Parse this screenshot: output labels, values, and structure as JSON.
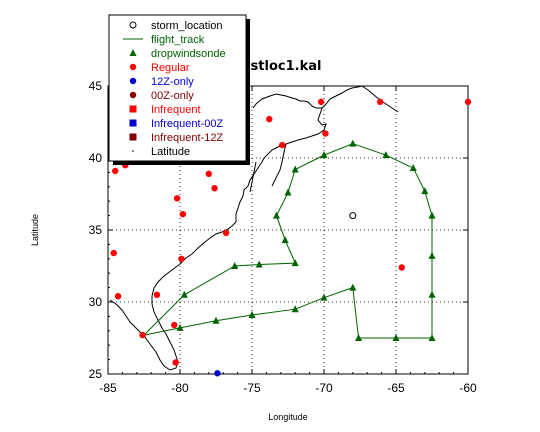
{
  "chart_data": {
    "type": "scatter",
    "title": "stloc1.kal",
    "xlabel": "Longitude",
    "ylabel": "Latitude",
    "xlim": [
      -85,
      -60
    ],
    "ylim": [
      25,
      45
    ],
    "xticks": [
      -85,
      -80,
      -75,
      -70,
      -65,
      -60
    ],
    "yticks": [
      25,
      30,
      35,
      40,
      45
    ],
    "grid": true,
    "grid_style": "dotted",
    "legend_placement": "top-left",
    "legend": [
      {
        "label": "storm_location",
        "marker": "open-circle",
        "color": "#000000"
      },
      {
        "label": "flight_track",
        "marker": "line",
        "color": "#006400"
      },
      {
        "label": "dropwindsonde",
        "marker": "triangle",
        "color": "#006400"
      },
      {
        "label": "Regular",
        "marker": "circle",
        "color": "#ff0000"
      },
      {
        "label": "12Z-only",
        "marker": "circle",
        "color": "#0000cc"
      },
      {
        "label": "00Z-only",
        "marker": "circle",
        "color": "#800000"
      },
      {
        "label": "Infrequent",
        "marker": "square",
        "color": "#ff0000"
      },
      {
        "label": "Infrequent-00Z",
        "marker": "square",
        "color": "#0000cc"
      },
      {
        "label": "Infrequent-12Z",
        "marker": "square",
        "color": "#800000"
      },
      {
        "label": "Latitude",
        "marker": "dot",
        "color": "#000000"
      }
    ],
    "storm_location": [
      {
        "x": -68.0,
        "y": 36.0
      }
    ],
    "flight_track": [
      {
        "x": -82.5,
        "y": 27.7
      },
      {
        "x": -79.7,
        "y": 30.5
      },
      {
        "x": -76.2,
        "y": 32.5
      },
      {
        "x": -74.5,
        "y": 32.6
      },
      {
        "x": -72.0,
        "y": 32.7
      },
      {
        "x": -72.7,
        "y": 34.3
      },
      {
        "x": -73.3,
        "y": 36.0
      },
      {
        "x": -72.5,
        "y": 37.6
      },
      {
        "x": -72.0,
        "y": 39.2
      },
      {
        "x": -70.0,
        "y": 40.2
      },
      {
        "x": -68.0,
        "y": 41.0
      },
      {
        "x": -65.7,
        "y": 40.2
      },
      {
        "x": -63.8,
        "y": 39.3
      },
      {
        "x": -63.0,
        "y": 37.7
      },
      {
        "x": -62.5,
        "y": 36.0
      },
      {
        "x": -62.5,
        "y": 33.2
      },
      {
        "x": -62.5,
        "y": 30.5
      },
      {
        "x": -62.5,
        "y": 27.5
      },
      {
        "x": -65.0,
        "y": 27.5
      },
      {
        "x": -67.6,
        "y": 27.5
      },
      {
        "x": -68.0,
        "y": 31.0
      },
      {
        "x": -70.0,
        "y": 30.3
      },
      {
        "x": -72.0,
        "y": 29.5
      },
      {
        "x": -75.0,
        "y": 29.1
      },
      {
        "x": -77.5,
        "y": 28.7
      },
      {
        "x": -80.0,
        "y": 28.2
      },
      {
        "x": -82.5,
        "y": 27.7
      }
    ],
    "dropwindsonde": [
      {
        "x": -79.7,
        "y": 30.5
      },
      {
        "x": -76.2,
        "y": 32.5
      },
      {
        "x": -74.5,
        "y": 32.6
      },
      {
        "x": -72.0,
        "y": 32.7
      },
      {
        "x": -72.7,
        "y": 34.3
      },
      {
        "x": -73.3,
        "y": 36.0
      },
      {
        "x": -72.5,
        "y": 37.6
      },
      {
        "x": -72.0,
        "y": 39.2
      },
      {
        "x": -70.0,
        "y": 40.2
      },
      {
        "x": -68.0,
        "y": 41.0
      },
      {
        "x": -65.7,
        "y": 40.2
      },
      {
        "x": -63.8,
        "y": 39.3
      },
      {
        "x": -63.0,
        "y": 37.7
      },
      {
        "x": -62.5,
        "y": 36.0
      },
      {
        "x": -62.5,
        "y": 33.2
      },
      {
        "x": -62.5,
        "y": 30.5
      },
      {
        "x": -62.5,
        "y": 27.5
      },
      {
        "x": -65.0,
        "y": 27.5
      },
      {
        "x": -67.6,
        "y": 27.5
      },
      {
        "x": -68.0,
        "y": 31.0
      },
      {
        "x": -70.0,
        "y": 30.3
      },
      {
        "x": -72.0,
        "y": 29.5
      },
      {
        "x": -75.0,
        "y": 29.1
      },
      {
        "x": -77.5,
        "y": 28.7
      },
      {
        "x": -80.0,
        "y": 28.2
      }
    ],
    "regular": [
      {
        "x": -84.5,
        "y": 39.1
      },
      {
        "x": -83.8,
        "y": 39.5
      },
      {
        "x": -80.2,
        "y": 37.2
      },
      {
        "x": -79.8,
        "y": 36.1
      },
      {
        "x": -78.0,
        "y": 38.9
      },
      {
        "x": -77.6,
        "y": 37.9
      },
      {
        "x": -76.8,
        "y": 34.8
      },
      {
        "x": -79.9,
        "y": 33.0
      },
      {
        "x": -81.6,
        "y": 30.5
      },
      {
        "x": -84.6,
        "y": 33.4
      },
      {
        "x": -84.3,
        "y": 30.4
      },
      {
        "x": -80.4,
        "y": 28.4
      },
      {
        "x": -80.3,
        "y": 25.8
      },
      {
        "x": -82.6,
        "y": 27.7
      },
      {
        "x": -72.9,
        "y": 40.9
      },
      {
        "x": -73.8,
        "y": 42.7
      },
      {
        "x": -70.2,
        "y": 43.9
      },
      {
        "x": -69.9,
        "y": 41.7
      },
      {
        "x": -66.1,
        "y": 43.9
      },
      {
        "x": -60.0,
        "y": 43.9
      },
      {
        "x": -64.6,
        "y": 32.4
      }
    ],
    "twelve_z_only": [
      {
        "x": -77.4,
        "y": 25.05
      }
    ]
  }
}
